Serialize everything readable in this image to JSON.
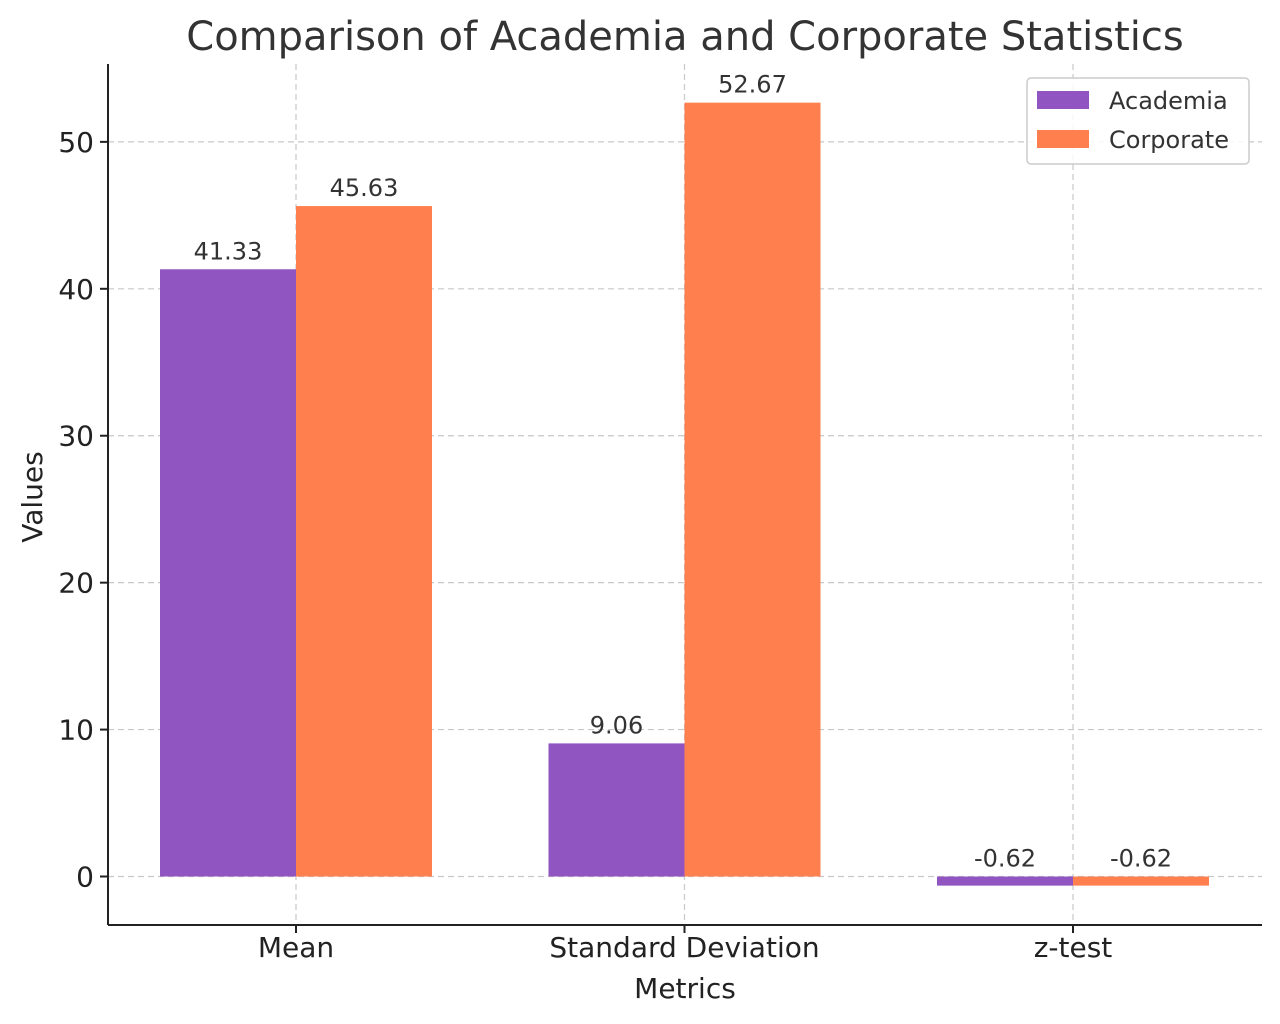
{
  "chart_data": {
    "type": "bar",
    "title": "Comparison of Academia and Corporate Statistics",
    "xlabel": "Metrics",
    "ylabel": "Values",
    "categories": [
      "Mean",
      "Standard Deviation",
      "z-test"
    ],
    "series": [
      {
        "name": "Academia",
        "color": "#9155c2",
        "values": [
          41.33,
          9.06,
          -0.62
        ],
        "labels": [
          "41.33",
          "9.06",
          "-0.62"
        ]
      },
      {
        "name": "Corporate",
        "color": "#ff7f4f",
        "values": [
          45.63,
          52.67,
          -0.62
        ],
        "labels": [
          "45.63",
          "52.67",
          "-0.62"
        ]
      }
    ],
    "ylim": [
      -3.3,
      55.3
    ],
    "yticks": [
      0,
      10,
      20,
      30,
      40,
      50
    ],
    "ytick_labels": [
      "0",
      "10",
      "20",
      "30",
      "40",
      "50"
    ],
    "grid": true,
    "legend_position": "top-right"
  }
}
